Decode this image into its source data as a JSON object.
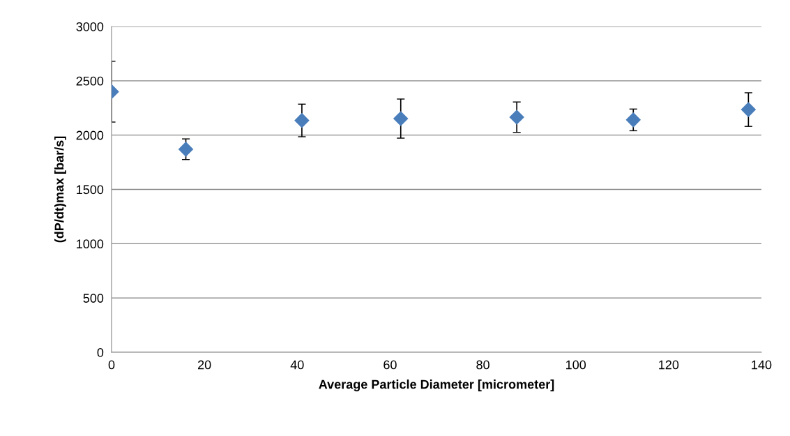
{
  "chart_data": {
    "type": "scatter",
    "xlabel": "Average Particle Diameter [micrometer]",
    "ylabel": "(dP/dt)max [bar/s]",
    "x": [
      0,
      16,
      41,
      62.3,
      87.3,
      112.4,
      137.2
    ],
    "values": [
      2400,
      1870,
      2135,
      2152,
      2165,
      2140,
      2235
    ],
    "errors": [
      280,
      95,
      150,
      180,
      140,
      100,
      155
    ],
    "color": "#4a7ebb",
    "marker": "diamond",
    "xlim": [
      0,
      140
    ],
    "xticks": [
      0,
      20,
      40,
      60,
      80,
      100,
      120,
      140
    ],
    "ylim": [
      0,
      3000
    ],
    "yticks": [
      0,
      500,
      1000,
      1500,
      2000,
      2500,
      3000
    ],
    "grid": "y",
    "legend": false
  }
}
